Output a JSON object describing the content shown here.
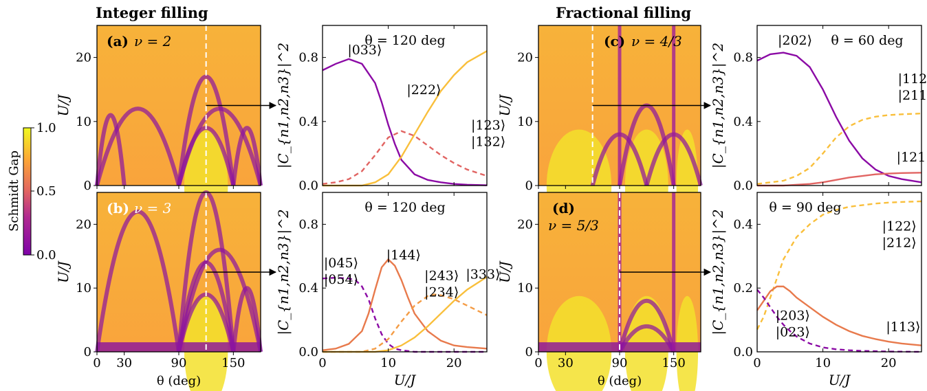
{
  "headings": {
    "integer": "Integer filling",
    "fractional": "Fractional filling"
  },
  "colorbar": {
    "label": "Schmidt Gap",
    "ticks": [
      "0.0",
      "0.5",
      "1.0"
    ],
    "range": [
      0,
      1
    ],
    "colormap": [
      "#0d0887",
      "#7e03a8",
      "#cc4778",
      "#f89540",
      "#f0f921"
    ]
  },
  "chart_data": [
    {
      "id": "a",
      "type": "heatmap",
      "panel_label": "(a)",
      "annotation": "ν = 2",
      "xlabel": "θ (deg)",
      "ylabel": "U/J",
      "xlim": [
        0,
        180
      ],
      "ylim": [
        0,
        25
      ],
      "xticks": [
        "0",
        "30",
        "90",
        "150"
      ],
      "yticks": [
        "0",
        "10",
        "20"
      ],
      "marker_theta": 120,
      "arrow_U": 12.5
    },
    {
      "id": "a-right",
      "type": "line",
      "title": "θ = 120 deg",
      "xlabel": "U/J",
      "ylabel": "|C_{n1,n2,n3}|^2",
      "xlim": [
        0,
        25
      ],
      "ylim": [
        0,
        1
      ],
      "xticks": [
        "0",
        "10",
        "20"
      ],
      "yticks": [
        "0.0",
        "0.4",
        "0.8"
      ],
      "series": [
        {
          "name": "|033⟩",
          "style": "solid",
          "color": "#8b0aa5",
          "x": [
            0,
            2,
            4,
            6,
            8,
            9,
            10,
            11,
            12,
            14,
            16,
            18,
            20,
            22,
            25
          ],
          "y": [
            0.72,
            0.76,
            0.79,
            0.76,
            0.64,
            0.52,
            0.38,
            0.26,
            0.16,
            0.07,
            0.035,
            0.02,
            0.01,
            0.005,
            0.002
          ]
        },
        {
          "name": "|222⟩",
          "style": "solid",
          "color": "#f9bf3b",
          "x": [
            0,
            6,
            8,
            10,
            12,
            14,
            16,
            18,
            20,
            22,
            25
          ],
          "y": [
            0.0,
            0.0,
            0.02,
            0.07,
            0.18,
            0.32,
            0.46,
            0.59,
            0.69,
            0.77,
            0.84
          ]
        },
        {
          "name": "|123⟩ |132⟩",
          "style": "dashed",
          "color": "#e16462",
          "x": [
            0,
            2,
            4,
            6,
            8,
            10,
            12,
            14,
            16,
            18,
            20,
            22,
            25
          ],
          "y": [
            0.01,
            0.02,
            0.04,
            0.09,
            0.19,
            0.3,
            0.34,
            0.31,
            0.25,
            0.19,
            0.14,
            0.1,
            0.06
          ]
        }
      ]
    },
    {
      "id": "b",
      "type": "heatmap",
      "panel_label": "(b)",
      "annotation": "ν = 3",
      "xlabel": "θ (deg)",
      "ylabel": "U/J",
      "xlim": [
        0,
        180
      ],
      "ylim": [
        0,
        25
      ],
      "xticks": [
        "0",
        "30",
        "90",
        "150"
      ],
      "yticks": [
        "0",
        "10",
        "20"
      ],
      "marker_theta": 120,
      "arrow_U": 12.5
    },
    {
      "id": "b-right",
      "type": "line",
      "title": "θ = 120 deg",
      "xlabel": "U/J",
      "ylabel": "|C_{n1,n2,n3}|^2",
      "xlim": [
        0,
        25
      ],
      "ylim": [
        0,
        1
      ],
      "xticks": [
        "0",
        "10",
        "20"
      ],
      "yticks": [
        "0.0",
        "0.4",
        "0.8"
      ],
      "series": [
        {
          "name": "|045⟩ |054⟩",
          "style": "dashed",
          "color": "#8b0aa5",
          "x": [
            0,
            2,
            4,
            5,
            6,
            7,
            8,
            9,
            10,
            11,
            12,
            14,
            18,
            25
          ],
          "y": [
            0.46,
            0.465,
            0.46,
            0.45,
            0.41,
            0.33,
            0.21,
            0.11,
            0.05,
            0.02,
            0.01,
            0.0,
            0.0,
            0.0
          ]
        },
        {
          "name": "|144⟩",
          "style": "solid",
          "color": "#e87a4c",
          "x": [
            0,
            2,
            4,
            6,
            7,
            8,
            9,
            10,
            11,
            12,
            13,
            14,
            16,
            18,
            20,
            22,
            25
          ],
          "y": [
            0.01,
            0.02,
            0.05,
            0.13,
            0.24,
            0.39,
            0.53,
            0.58,
            0.54,
            0.45,
            0.34,
            0.24,
            0.13,
            0.07,
            0.04,
            0.03,
            0.02
          ]
        },
        {
          "name": "|243⟩ |234⟩",
          "style": "dashed",
          "color": "#f49c45",
          "x": [
            0,
            6,
            8,
            10,
            12,
            14,
            16,
            17,
            18,
            20,
            22,
            25
          ],
          "y": [
            0.0,
            0.0,
            0.02,
            0.08,
            0.19,
            0.29,
            0.35,
            0.36,
            0.355,
            0.33,
            0.29,
            0.23
          ]
        },
        {
          "name": "|333⟩",
          "style": "solid",
          "color": "#f9bf3b",
          "x": [
            0,
            8,
            10,
            12,
            14,
            16,
            18,
            20,
            22,
            25
          ],
          "y": [
            0.0,
            0.0,
            0.01,
            0.04,
            0.09,
            0.16,
            0.24,
            0.32,
            0.39,
            0.47
          ]
        }
      ]
    },
    {
      "id": "c",
      "type": "heatmap",
      "panel_label": "(c)",
      "annotation": "ν = 4/3",
      "xlabel": "θ (deg)",
      "ylabel": "U/J",
      "xlim": [
        0,
        180
      ],
      "ylim": [
        0,
        25
      ],
      "xticks": [
        "0",
        "30",
        "90",
        "150"
      ],
      "yticks": [
        "0",
        "10",
        "20"
      ],
      "marker_theta": 60,
      "arrow_U": 12.5
    },
    {
      "id": "c-right",
      "type": "line",
      "title": "θ = 60 deg",
      "title_prefix": "|202⟩",
      "xlabel": "U/J",
      "ylabel": "|C_{n1,n2,n3}|^2",
      "xlim": [
        0,
        25
      ],
      "ylim": [
        0,
        1
      ],
      "xticks": [
        "0",
        "10",
        "20"
      ],
      "yticks": [
        "0.0",
        "0.4",
        "0.8"
      ],
      "series": [
        {
          "name": "|202⟩",
          "style": "solid",
          "color": "#8b0aa5",
          "x": [
            0,
            2,
            4,
            6,
            8,
            10,
            12,
            14,
            16,
            18,
            20,
            22,
            25
          ],
          "y": [
            0.78,
            0.82,
            0.83,
            0.81,
            0.74,
            0.6,
            0.43,
            0.28,
            0.17,
            0.1,
            0.06,
            0.04,
            0.02
          ]
        },
        {
          "name": "|112⟩ |211⟩",
          "style": "dashed",
          "color": "#f9bf3b",
          "x": [
            0,
            2,
            4,
            6,
            8,
            10,
            12,
            14,
            16,
            18,
            20,
            22,
            25
          ],
          "y": [
            0.01,
            0.02,
            0.03,
            0.06,
            0.11,
            0.2,
            0.3,
            0.37,
            0.41,
            0.43,
            0.44,
            0.445,
            0.45
          ]
        },
        {
          "name": "|121⟩",
          "style": "solid",
          "color": "#e16462",
          "x": [
            0,
            4,
            6,
            8,
            10,
            12,
            14,
            16,
            18,
            20,
            22,
            25
          ],
          "y": [
            0.0,
            0.0,
            0.005,
            0.01,
            0.02,
            0.035,
            0.05,
            0.06,
            0.07,
            0.075,
            0.078,
            0.08
          ]
        }
      ]
    },
    {
      "id": "d",
      "type": "heatmap",
      "panel_label": "(d)",
      "annotation": "ν = 5/3",
      "xlabel": "θ (deg)",
      "ylabel": "U/J",
      "xlim": [
        0,
        180
      ],
      "ylim": [
        0,
        25
      ],
      "xticks": [
        "0",
        "30",
        "90",
        "150"
      ],
      "yticks": [
        "0",
        "10",
        "20"
      ],
      "marker_theta": 90,
      "arrow_U": 12.5
    },
    {
      "id": "d-right",
      "type": "line",
      "title": "θ = 90 deg",
      "xlabel": "U/J",
      "ylabel": "|C_{n1,n2,n3}|^2",
      "xlim": [
        0,
        25
      ],
      "ylim": [
        0,
        0.5
      ],
      "xticks": [
        "0",
        "10",
        "20"
      ],
      "yticks": [
        "0.0",
        "0.2",
        "0.4"
      ],
      "series": [
        {
          "name": "|122⟩ |212⟩",
          "style": "dashed",
          "color": "#f9bf3b",
          "x": [
            0,
            1,
            2,
            3,
            4,
            6,
            8,
            10,
            12,
            14,
            16,
            18,
            20,
            22,
            25
          ],
          "y": [
            0.07,
            0.11,
            0.17,
            0.23,
            0.29,
            0.36,
            0.4,
            0.43,
            0.445,
            0.455,
            0.46,
            0.465,
            0.468,
            0.47,
            0.472
          ]
        },
        {
          "name": "|113⟩",
          "style": "solid",
          "color": "#e87a4c",
          "x": [
            0,
            1,
            2,
            3,
            4,
            5,
            6,
            8,
            10,
            12,
            14,
            16,
            18,
            20,
            22,
            25
          ],
          "y": [
            0.13,
            0.16,
            0.19,
            0.205,
            0.205,
            0.19,
            0.17,
            0.14,
            0.11,
            0.085,
            0.065,
            0.05,
            0.04,
            0.032,
            0.026,
            0.02
          ]
        },
        {
          "name": "|203⟩ |023⟩",
          "style": "dashed",
          "color": "#8b0aa5",
          "x": [
            0,
            1,
            2,
            3,
            4,
            5,
            6,
            8,
            10,
            12,
            14,
            16,
            20,
            25
          ],
          "y": [
            0.195,
            0.17,
            0.14,
            0.11,
            0.085,
            0.065,
            0.048,
            0.026,
            0.014,
            0.008,
            0.005,
            0.003,
            0.001,
            0.0
          ]
        }
      ]
    }
  ]
}
